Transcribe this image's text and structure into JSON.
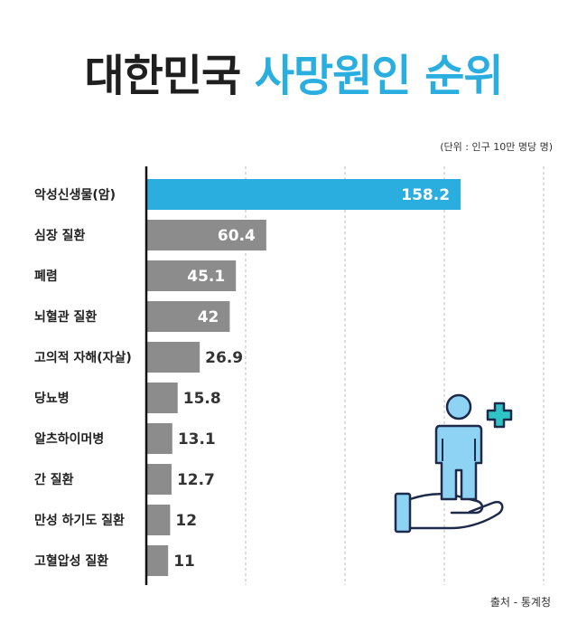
{
  "header": {
    "title_part1": "대한민국",
    "title_part2": "사망원인 순위",
    "unit": "(단위 : 인구 10만 명당 명)"
  },
  "footer": {
    "source": "출처 - 통계청"
  },
  "colors": {
    "highlight": "#2aaee0",
    "bar": "#8c8c8c",
    "title_dark": "#1f1f1f",
    "icon_person": "#8fd3f4",
    "icon_hand": "#8fd3f4",
    "icon_plus": "#2ec4c6",
    "icon_stroke": "#1e2a4a"
  },
  "icons": [
    "person-on-hand-icon",
    "medical-cross-icon"
  ],
  "chart_data": {
    "type": "bar",
    "orientation": "horizontal",
    "categories": [
      "악성신생물(암)",
      "심장 질환",
      "폐렴",
      "뇌혈관 질환",
      "고의적 자해(자살)",
      "당뇨병",
      "알츠하이머병",
      "간 질환",
      "만성 하기도 질환",
      "고혈압성 질환"
    ],
    "values": [
      158.2,
      60.4,
      45.1,
      42,
      26.9,
      15.8,
      13.1,
      12.7,
      12,
      11
    ],
    "value_labels": [
      "158.2",
      "60.4",
      "45.1",
      "42",
      "26.9",
      "15.8",
      "13.1",
      "12.7",
      "12",
      "11"
    ],
    "highlight_index": 0,
    "xlim": [
      0,
      200
    ],
    "grid": "vertical-dashed",
    "title": "",
    "xlabel": "",
    "ylabel": ""
  }
}
